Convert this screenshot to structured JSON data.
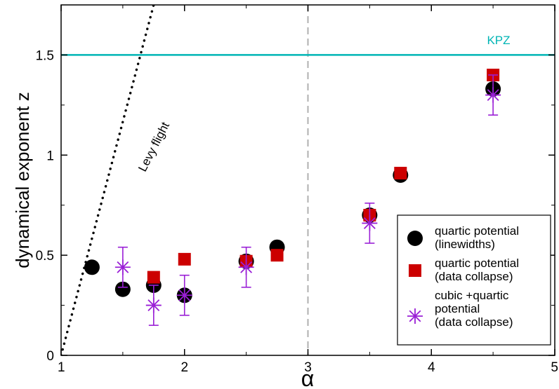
{
  "chart_data": {
    "type": "scatter",
    "xlabel": "α",
    "ylabel": "dynamical exponent z",
    "xlim": [
      1,
      5
    ],
    "ylim": [
      0,
      1.75
    ],
    "x_ticks": [
      1,
      2,
      3,
      4,
      5
    ],
    "y_ticks": [
      0,
      0.5,
      1,
      1.5
    ],
    "x_tick_labels": [
      "1",
      "2",
      "3",
      "4",
      "5"
    ],
    "y_tick_labels": [
      "0",
      "0.5",
      "1",
      "1.5"
    ],
    "legend_position": "bottom-right",
    "reference_lines": {
      "kpz": {
        "label": "KPZ",
        "y": 1.5,
        "color": "#00b5b5"
      },
      "levy": {
        "label": "Levy flight",
        "points": [
          [
            1,
            0
          ],
          [
            1.75,
            1.75
          ]
        ],
        "style": "dotted",
        "color": "#000000"
      },
      "alpha3": {
        "x": 3,
        "style": "dashed",
        "color": "#b0b0b0"
      }
    },
    "series": [
      {
        "name": "quartic potential (linewidths)",
        "legend_lines": [
          "quartic potential",
          "(linewidths)"
        ],
        "marker": "circle",
        "color": "#000000",
        "points": [
          {
            "x": 1.25,
            "y": 0.44
          },
          {
            "x": 1.5,
            "y": 0.33
          },
          {
            "x": 1.75,
            "y": 0.35
          },
          {
            "x": 2.0,
            "y": 0.3
          },
          {
            "x": 2.5,
            "y": 0.47
          },
          {
            "x": 2.75,
            "y": 0.54
          },
          {
            "x": 3.5,
            "y": 0.7
          },
          {
            "x": 3.75,
            "y": 0.9
          },
          {
            "x": 4.5,
            "y": 1.33
          }
        ]
      },
      {
        "name": "quartic potential (data collapse)",
        "legend_lines": [
          "quartic potential",
          "(data collapse)"
        ],
        "marker": "square",
        "color": "#cc0000",
        "points": [
          {
            "x": 1.75,
            "y": 0.39
          },
          {
            "x": 2.0,
            "y": 0.48
          },
          {
            "x": 2.5,
            "y": 0.47
          },
          {
            "x": 2.75,
            "y": 0.5
          },
          {
            "x": 3.5,
            "y": 0.7
          },
          {
            "x": 3.75,
            "y": 0.91
          },
          {
            "x": 4.5,
            "y": 1.4
          }
        ]
      },
      {
        "name": "cubic +quartic potential (data collapse)",
        "legend_lines": [
          "cubic +quartic",
          "potential",
          "(data collapse)"
        ],
        "marker": "asterisk",
        "color": "#9a1fd6",
        "points": [
          {
            "x": 1.5,
            "y": 0.44,
            "err": 0.1
          },
          {
            "x": 1.75,
            "y": 0.25,
            "err": 0.1
          },
          {
            "x": 2.0,
            "y": 0.3,
            "err": 0.1
          },
          {
            "x": 2.5,
            "y": 0.44,
            "err": 0.1
          },
          {
            "x": 3.5,
            "y": 0.66,
            "err": 0.1
          },
          {
            "x": 4.5,
            "y": 1.3,
            "err": 0.1
          }
        ]
      }
    ]
  }
}
